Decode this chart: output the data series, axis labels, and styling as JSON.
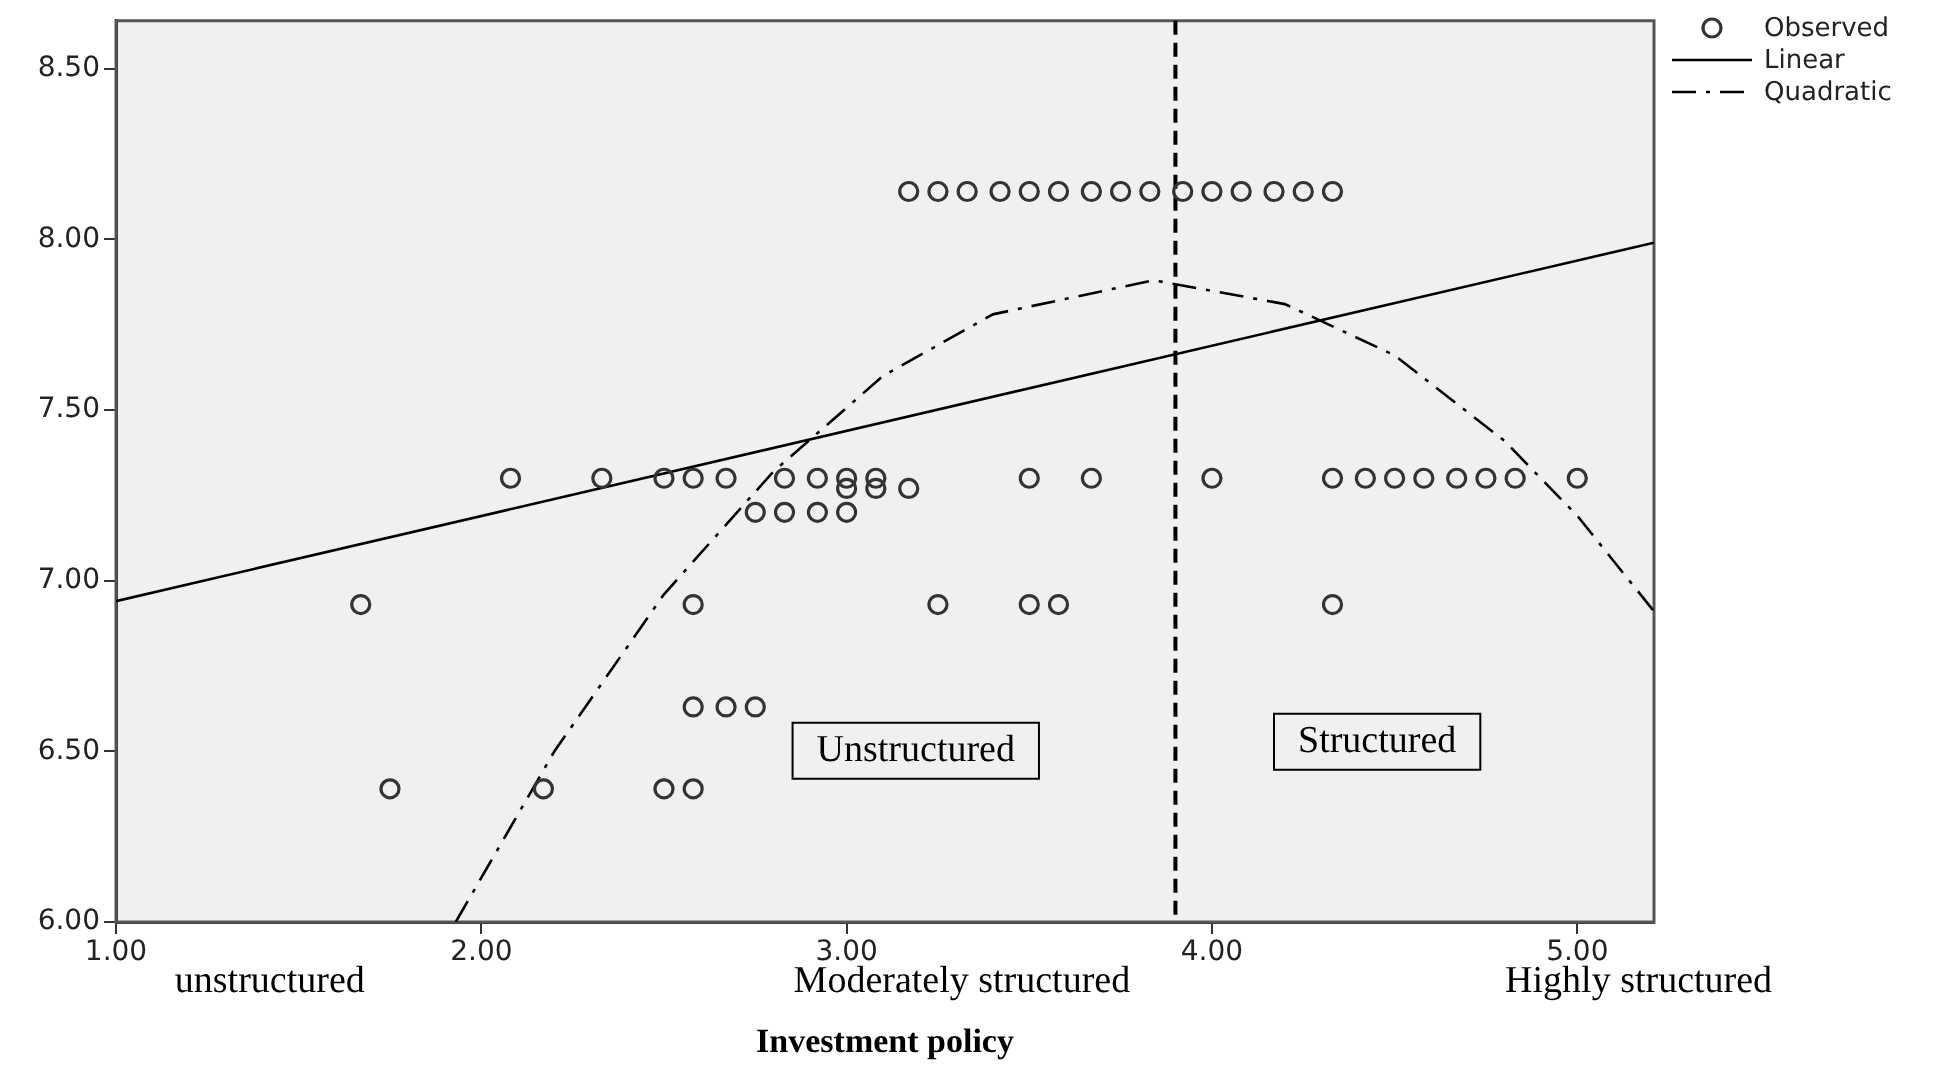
{
  "chart_data": {
    "type": "scatter",
    "xlabel": "Investment policy",
    "xlim": [
      1,
      5.21
    ],
    "ylim": [
      6,
      8.64
    ],
    "xticks": [
      {
        "value": 1,
        "label": "1.00"
      },
      {
        "value": 2,
        "label": "2.00"
      },
      {
        "value": 3,
        "label": "3.00"
      },
      {
        "value": 4,
        "label": "4.00"
      },
      {
        "value": 5,
        "label": "5.00"
      }
    ],
    "yticks": [
      {
        "value": 6,
        "label": "6.00"
      },
      {
        "value": 6.5,
        "label": "6.50"
      },
      {
        "value": 7,
        "label": "7.00"
      },
      {
        "value": 7.5,
        "label": "7.50"
      },
      {
        "value": 8,
        "label": "8.00"
      },
      {
        "value": 8.5,
        "label": "8.50"
      }
    ],
    "grid": false,
    "legend": "top right",
    "series": [
      {
        "name": "Observed",
        "type": "scatter",
        "color": "#333333",
        "marker": "circle",
        "x": [
          3.17,
          3.25,
          3.33,
          3.42,
          3.5,
          3.58,
          3.67,
          3.75,
          3.83,
          3.92,
          4.0,
          4.08,
          4.17,
          4.25,
          4.33,
          2.08,
          2.33,
          2.5,
          2.58,
          2.67,
          2.83,
          2.92,
          3.0,
          3.08,
          3.5,
          3.67,
          4.0,
          4.33,
          4.42,
          4.5,
          4.58,
          4.67,
          4.75,
          4.83,
          5.0,
          3.0,
          3.08,
          3.17,
          2.75,
          2.83,
          2.92,
          3.0,
          1.67,
          2.58,
          3.25,
          3.5,
          3.58,
          4.33,
          2.58,
          2.67,
          2.75,
          1.75,
          2.17,
          2.5,
          2.58
        ],
        "values": [
          8.14,
          8.14,
          8.14,
          8.14,
          8.14,
          8.14,
          8.14,
          8.14,
          8.14,
          8.14,
          8.14,
          8.14,
          8.14,
          8.14,
          8.14,
          7.3,
          7.3,
          7.3,
          7.3,
          7.3,
          7.3,
          7.3,
          7.3,
          7.3,
          7.3,
          7.3,
          7.3,
          7.3,
          7.3,
          7.3,
          7.3,
          7.3,
          7.3,
          7.3,
          7.3,
          7.27,
          7.27,
          7.27,
          7.2,
          7.2,
          7.2,
          7.2,
          6.93,
          6.93,
          6.93,
          6.93,
          6.93,
          6.93,
          6.63,
          6.63,
          6.63,
          6.39,
          6.39,
          6.39,
          6.39
        ]
      },
      {
        "name": "Linear",
        "type": "line",
        "color": "#000000",
        "line_style": "solid",
        "marker": "none",
        "x": [
          1,
          5.21
        ],
        "values": [
          6.94,
          7.99
        ]
      },
      {
        "name": "Quadratic",
        "type": "line",
        "color": "#000000",
        "line_style": "dashdot",
        "marker": "none",
        "x": [
          1.93,
          2.2,
          2.5,
          2.8,
          3.1,
          3.4,
          3.84,
          4.2,
          4.5,
          4.8,
          5.0,
          5.21
        ],
        "values": [
          6.0,
          6.5,
          6.96,
          7.32,
          7.6,
          7.78,
          7.88,
          7.81,
          7.66,
          7.41,
          7.19,
          6.91
        ]
      }
    ],
    "ref_lines": [
      {
        "axis": "x",
        "value": 3.9,
        "color": "#000000",
        "line_style": "dashed"
      }
    ],
    "annotations": [
      "Unstructured",
      "Structured",
      "unstructured",
      "Moderately structured",
      "Highly structured"
    ]
  }
}
